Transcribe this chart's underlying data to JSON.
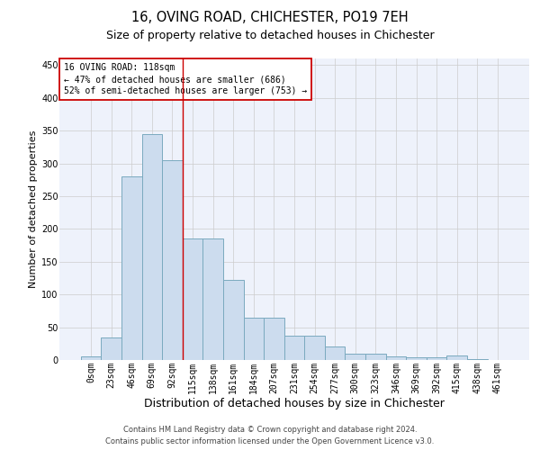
{
  "title": "16, OVING ROAD, CHICHESTER, PO19 7EH",
  "subtitle": "Size of property relative to detached houses in Chichester",
  "xlabel": "Distribution of detached houses by size in Chichester",
  "ylabel": "Number of detached properties",
  "bar_labels": [
    "0sqm",
    "23sqm",
    "46sqm",
    "69sqm",
    "92sqm",
    "115sqm",
    "138sqm",
    "161sqm",
    "184sqm",
    "207sqm",
    "231sqm",
    "254sqm",
    "277sqm",
    "300sqm",
    "323sqm",
    "346sqm",
    "369sqm",
    "392sqm",
    "415sqm",
    "438sqm",
    "461sqm"
  ],
  "bar_values": [
    5,
    35,
    280,
    345,
    305,
    185,
    185,
    122,
    65,
    65,
    37,
    37,
    20,
    10,
    10,
    5,
    4,
    4,
    7,
    2,
    0
  ],
  "bar_color": "#ccdcee",
  "bar_edge_color": "#7aaabf",
  "bg_color": "#eef2fb",
  "grid_color": "#cccccc",
  "property_line_x": 4.5,
  "annotation_text": "16 OVING ROAD: 118sqm\n← 47% of detached houses are smaller (686)\n52% of semi-detached houses are larger (753) →",
  "annotation_box_color": "#ffffff",
  "annotation_box_edge": "#cc0000",
  "vline_color": "#cc0000",
  "footer_line1": "Contains HM Land Registry data © Crown copyright and database right 2024.",
  "footer_line2": "Contains public sector information licensed under the Open Government Licence v3.0.",
  "ylim": [
    0,
    460
  ],
  "title_fontsize": 10.5,
  "subtitle_fontsize": 9,
  "xlabel_fontsize": 9,
  "ylabel_fontsize": 8,
  "tick_fontsize": 7,
  "annotation_fontsize": 7,
  "footer_fontsize": 6
}
